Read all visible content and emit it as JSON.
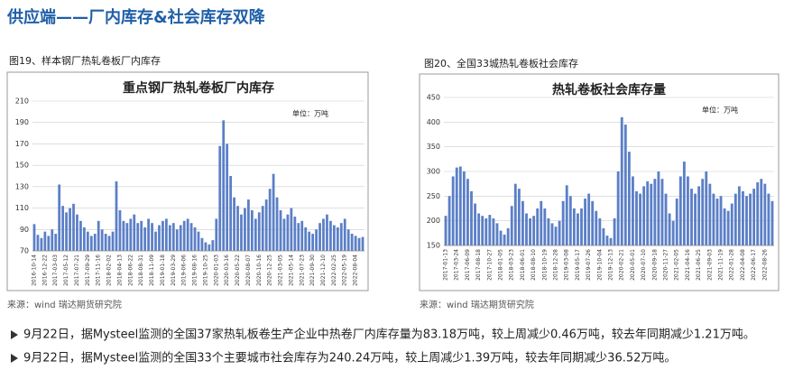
{
  "header": {
    "title": "供应端——厂内库存&社会库存双降"
  },
  "chart_data": [
    {
      "type": "bar",
      "caption": "图19、样本钢厂热轧卷板厂内库存",
      "title": "重点钢厂热轧卷板厂内库存",
      "unit": "单位：万吨",
      "source": "来源：wind   瑞达期货研究院",
      "color": "#5b7fc7",
      "ylim": [
        70,
        210
      ],
      "yticks": [
        70,
        90,
        110,
        130,
        150,
        170,
        190,
        210
      ],
      "grid": true,
      "categories": [
        "2016-10-14",
        null,
        null,
        "2016-12-22",
        null,
        null,
        "2017-03-03",
        null,
        null,
        "2017-05-12",
        null,
        null,
        "2017-07-21",
        null,
        null,
        "2017-09-29",
        null,
        null,
        "2017-11-16",
        null,
        null,
        "2018-02-02",
        null,
        null,
        "2018-04-13",
        null,
        null,
        "2018-06-22",
        null,
        null,
        "2018-08-31",
        null,
        null,
        "2018-11-09",
        null,
        null,
        "2019-01-18",
        null,
        null,
        "2019-03-29",
        null,
        null,
        "2019-06-06",
        null,
        null,
        "2019-08-16",
        null,
        null,
        "2019-10-25",
        null,
        null,
        "2020-01-03",
        null,
        null,
        "2020-03-16",
        null,
        null,
        "2020-05-22",
        null,
        null,
        "2020-08-07",
        null,
        null,
        "2020-10-16",
        null,
        null,
        "2020-12-25",
        null,
        null,
        "2021-03-05",
        null,
        null,
        "2021-05-14",
        null,
        null,
        "2021-07-23",
        null,
        null,
        "2021-09-30",
        null,
        null,
        "2021-12-10",
        null,
        null,
        "2022-02-25",
        null,
        null,
        "2022-05-19",
        null,
        null,
        "2022-08-04",
        null,
        null
      ],
      "values": [
        95,
        85,
        82,
        88,
        84,
        90,
        86,
        132,
        112,
        106,
        110,
        114,
        104,
        98,
        92,
        88,
        84,
        86,
        98,
        90,
        86,
        84,
        88,
        135,
        108,
        98,
        96,
        100,
        104,
        96,
        98,
        92,
        100,
        96,
        88,
        94,
        98,
        100,
        94,
        96,
        90,
        94,
        98,
        100,
        96,
        92,
        88,
        82,
        78,
        76,
        80,
        100,
        168,
        192,
        170,
        140,
        120,
        112,
        104,
        110,
        118,
        108,
        100,
        106,
        112,
        118,
        128,
        142,
        120,
        108,
        100,
        104,
        110,
        102,
        96,
        98,
        92,
        88,
        86,
        90,
        96,
        100,
        104,
        98,
        94,
        92,
        96,
        100,
        90,
        86,
        84,
        82,
        83
      ]
    },
    {
      "type": "bar",
      "caption": "图20、全国33城热轧卷板社会库存",
      "title": "热轧卷板社会库存量",
      "unit": "单位：万吨",
      "source": "来源：wind   瑞达期货研究院",
      "color": "#5b7fc7",
      "ylim": [
        150,
        450
      ],
      "yticks": [
        150,
        200,
        250,
        300,
        350,
        400,
        450
      ],
      "grid": true,
      "categories": [
        "2017-01-13",
        null,
        null,
        "2017-03-24",
        null,
        null,
        "2017-06-09",
        null,
        null,
        "2017-08-18",
        null,
        null,
        "2017-10-27",
        null,
        null,
        "2018-01-05",
        null,
        null,
        "2018-03-23",
        null,
        null,
        "2018-06-01",
        null,
        null,
        "2018-08-10",
        null,
        null,
        "2018-10-19",
        null,
        null,
        "2018-12-28",
        null,
        null,
        "2019-03-08",
        null,
        null,
        "2019-05-17",
        null,
        null,
        "2019-07-26",
        null,
        null,
        "2019-10-04",
        null,
        null,
        "2019-12-13",
        null,
        null,
        "2020-02-21",
        null,
        null,
        "2020-05-01",
        null,
        null,
        "2020-07-10",
        null,
        null,
        "2020-09-18",
        null,
        null,
        "2020-11-27",
        null,
        null,
        "2021-02-05",
        null,
        null,
        "2021-04-16",
        null,
        null,
        "2021-06-25",
        null,
        null,
        "2021-09-03",
        null,
        null,
        "2021-11-19",
        null,
        null,
        "2022-01-28",
        null,
        null,
        "2022-04-08",
        null,
        null,
        "2022-06-17",
        null,
        null,
        "2022-08-26",
        null,
        null
      ],
      "values": [
        210,
        250,
        290,
        308,
        310,
        300,
        285,
        260,
        235,
        215,
        210,
        205,
        212,
        205,
        195,
        180,
        172,
        185,
        230,
        275,
        265,
        240,
        215,
        205,
        210,
        225,
        240,
        225,
        205,
        195,
        188,
        200,
        240,
        272,
        250,
        225,
        215,
        225,
        245,
        255,
        240,
        220,
        205,
        185,
        170,
        165,
        205,
        300,
        410,
        395,
        340,
        290,
        260,
        255,
        270,
        280,
        275,
        285,
        300,
        285,
        255,
        215,
        200,
        245,
        290,
        320,
        290,
        265,
        255,
        270,
        285,
        300,
        275,
        255,
        245,
        250,
        225,
        220,
        235,
        255,
        270,
        260,
        250,
        255,
        265,
        278,
        285,
        275,
        255,
        240
      ]
    }
  ],
  "bullets": [
    "9月22日，据Mysteel监测的全国37家热轧板卷生产企业中热卷厂内库存量为83.18万吨，较上周减少0.46万吨，较去年同期减少1.21万吨。",
    "9月22日，据Mysteel监测的全国33个主要城市社会库存为240.24万吨，较上周减少1.39万吨，较去年同期减少36.52万吨。"
  ]
}
